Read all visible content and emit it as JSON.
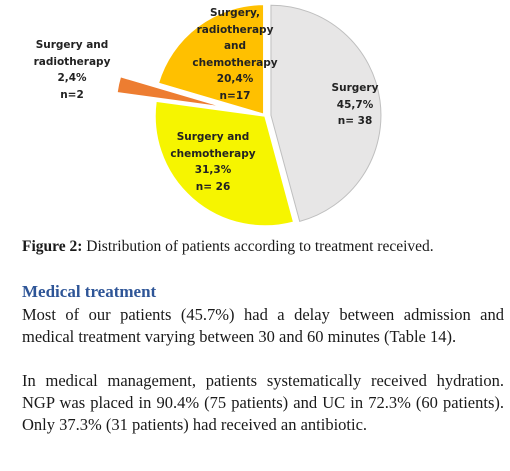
{
  "chart_data": {
    "type": "pie",
    "categories": [
      "Surgery",
      "Surgery and chemotherapy",
      "Surgery and radiotherapy",
      "Surgery, radiotherapy and chemotherapy"
    ],
    "values": [
      45.7,
      31.3,
      2.4,
      20.4
    ],
    "value_labels": [
      "45,7%",
      "31,3%",
      "2,4%",
      "20,4%"
    ],
    "n_labels": [
      "n= 38",
      "n= 26",
      "n=2",
      "n=17"
    ],
    "colors": [
      "#e7e6e6",
      "#f6f500",
      "#ed7d31",
      "#ffc000"
    ]
  },
  "caption": {
    "label": "Figure 2:",
    "text": "Distribution of patients according to treatment received."
  },
  "heading": "Medical treatment",
  "paragraphs": [
    "Most of our patients (45.7%) had a delay between admission and medical treatment varying between 30 and 60 minutes (Table 14).",
    "In medical management, patients systematically received hydration. NGP was placed in 90.4% (75 patients) and UC in 72.3% (60 patients). Only 37.3% (31 patients) had received an antibiotic."
  ]
}
